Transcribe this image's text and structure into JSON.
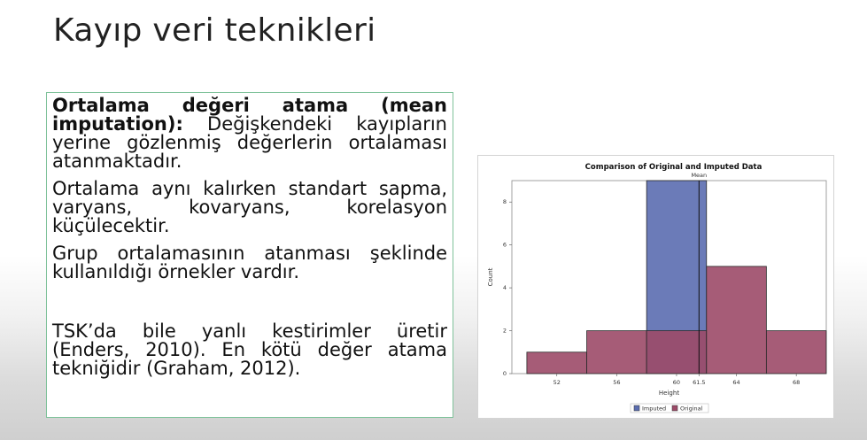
{
  "slide": {
    "title": "Kayıp veri teknikleri"
  },
  "textbox": {
    "p1_bold": "Ortalama değeri atama (mean imputation):",
    "p1_rest": " Değişkendeki kayıpların yerine gözlenmiş değerlerin ortalaması atanmaktadır.",
    "p2": "Ortalama aynı kalırken standart sapma, varyans, kovaryans, korelasyon küçülecektir.",
    "p3": "Grup ortalamasının atanması şeklinde kullanıldığı örnekler vardır.",
    "p4": "TSK’da bile yanlı kestirimler üretir (Enders, 2010). En kötü değer atama tekniğidir (Graham, 2012)."
  },
  "chart_data": {
    "type": "bar",
    "title": "Comparison of Original and Imputed Data",
    "xlabel": "Height",
    "ylabel": "Count",
    "xlim": [
      49,
      70
    ],
    "ylim": [
      0,
      9
    ],
    "x_ticks": [
      "52",
      "56",
      "60",
      "61.5",
      "64",
      "68"
    ],
    "x_tick_values": [
      52,
      56,
      60,
      61.5,
      64,
      68
    ],
    "y_ticks": [
      0,
      2,
      4,
      6,
      8
    ],
    "mean_line": {
      "x": 61.5,
      "label": "Mean"
    },
    "bin_width": 4,
    "series": [
      {
        "name": "Imputed",
        "color": "#5b6db0",
        "bins": [
          {
            "x0": 58,
            "x1": 62,
            "count": 9
          }
        ]
      },
      {
        "name": "Original",
        "color": "#9c4a68",
        "bins": [
          {
            "x0": 50,
            "x1": 54,
            "count": 1
          },
          {
            "x0": 54,
            "x1": 58,
            "count": 2
          },
          {
            "x0": 58,
            "x1": 62,
            "count": 2
          },
          {
            "x0": 62,
            "x1": 66,
            "count": 5
          },
          {
            "x0": 66,
            "x1": 70,
            "count": 2
          }
        ]
      }
    ],
    "legend": [
      "Imputed",
      "Original"
    ],
    "legend_position": "bottom"
  }
}
